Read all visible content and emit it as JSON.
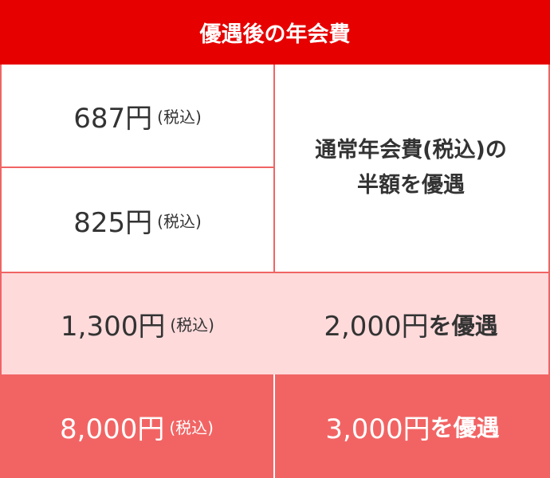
{
  "header": {
    "title": "優遇後の年会費"
  },
  "rows": [
    {
      "price": "687円",
      "tax": "(税込)"
    },
    {
      "price": "825円",
      "tax": "(税込)"
    },
    {
      "price": "1,300円",
      "tax": "(税込)",
      "benefit_amount": "2,000円",
      "benefit_suffix": "を優遇"
    },
    {
      "price": "8,000円",
      "tax": "(税込)",
      "benefit_amount": "3,000円",
      "benefit_suffix": "を優遇"
    }
  ],
  "merged_note": {
    "line1": "通常年会費(税込)の",
    "line2": "半額を優遇"
  },
  "colors": {
    "header": "#e60000",
    "border": "#f06464",
    "pink_row": "#ffdadb",
    "red_row": "#f26464",
    "text": "#333333"
  }
}
